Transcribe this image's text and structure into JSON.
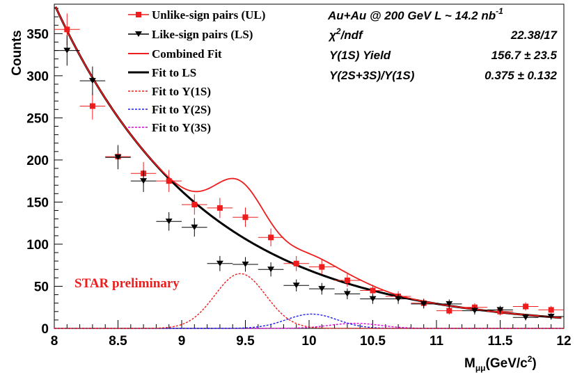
{
  "chart_data": {
    "type": "scatter",
    "xlim": [
      8,
      12
    ],
    "ylim": [
      0,
      385
    ],
    "xlabel_main": "M",
    "xlabel_sub": "μμ",
    "xlabel_unit": "(GeV/c",
    "xlabel_sup": "2",
    "xlabel_close": ")",
    "ylabel": "Counts",
    "x_ticks": [
      "8",
      "8.5",
      "9",
      "9.5",
      "10",
      "10.5",
      "11",
      "11.5",
      "12"
    ],
    "y_ticks": [
      "0",
      "50",
      "100",
      "150",
      "200",
      "250",
      "300",
      "350"
    ],
    "series": [
      {
        "name": "Unlike-sign pairs (UL)",
        "marker": "square",
        "color": "#ee1c1c",
        "x": [
          8.1,
          8.3,
          8.5,
          8.7,
          8.9,
          9.1,
          9.3,
          9.5,
          9.7,
          9.9,
          10.1,
          10.3,
          10.5,
          10.7,
          10.9,
          11.1,
          11.3,
          11.5,
          11.7,
          11.9
        ],
        "y": [
          355,
          264,
          204,
          184,
          175,
          147,
          143,
          132,
          108,
          77,
          73,
          57,
          45,
          38,
          30,
          21,
          25,
          20,
          26,
          22
        ],
        "yerr": [
          19,
          16,
          14,
          13.5,
          13,
          12,
          12,
          11.5,
          10.5,
          9,
          8.5,
          7.5,
          6.7,
          6.2,
          5.5,
          4.6,
          5,
          4.5,
          5,
          4.7
        ]
      },
      {
        "name": "Like-sign pairs (LS)",
        "marker": "triangle-down",
        "color": "#000000",
        "x": [
          8.1,
          8.3,
          8.5,
          8.7,
          8.9,
          9.1,
          9.3,
          9.5,
          9.7,
          9.9,
          10.1,
          10.3,
          10.5,
          10.7,
          10.9,
          11.1,
          11.3,
          11.5,
          11.7,
          11.9
        ],
        "y": [
          330,
          294,
          203,
          175,
          127,
          120,
          77,
          76,
          70,
          51,
          47,
          41,
          35,
          35,
          29,
          29,
          21,
          22,
          13,
          14
        ],
        "yerr": [
          18,
          17,
          14,
          13,
          11,
          11,
          9,
          8.7,
          8.4,
          7.1,
          6.9,
          6.4,
          5.9,
          5.9,
          5.4,
          5.4,
          4.6,
          4.7,
          3.6,
          3.7
        ]
      }
    ],
    "fits": {
      "ls": {
        "name": "Fit to LS",
        "color": "#000000",
        "amp": 369,
        "slope": 0.859,
        "x0": 8.05
      },
      "ups1s": {
        "name": "Fit to Υ(1S)",
        "color": "#ee1c1c",
        "mean": 9.46,
        "sigma": 0.2,
        "amp": 65
      },
      "ups2s": {
        "name": "Fit to Υ(2S)",
        "color": "#1c1cee",
        "mean": 10.02,
        "sigma": 0.2,
        "amp": 17
      },
      "ups3s": {
        "name": "Fit to Υ(3S)",
        "color": "#dd00dd",
        "mean": 10.36,
        "sigma": 0.2,
        "amp": 6
      },
      "combined": {
        "name": "Combined Fit",
        "color": "#ee1c1c"
      }
    },
    "legend": {
      "placement": "top-left",
      "entries": [
        "Unlike-sign pairs (UL)",
        "Like-sign pairs (LS)",
        "Combined Fit",
        "Fit to LS",
        "Fit to Υ(1S)",
        "Fit to Υ(2S)",
        "Fit to Υ(3S)"
      ]
    },
    "info": {
      "collision": "Au+Au @ 200 GeV  L ~ 14.2 nb",
      "collision_sup": "-1",
      "chi2_label": "χ",
      "chi2_sup": "2",
      "chi2_tail": "/ndf",
      "chi2_value": "22.38/17",
      "yield_label": "Υ(1S) Yield",
      "yield_value": "156.7 ± 23.5",
      "ratio_label": "Υ(2S+3S)/Υ(1S)",
      "ratio_value": "0.375 ± 0.132"
    },
    "annotation": {
      "text": "STAR preliminary",
      "color": "#ee1c1c"
    }
  }
}
